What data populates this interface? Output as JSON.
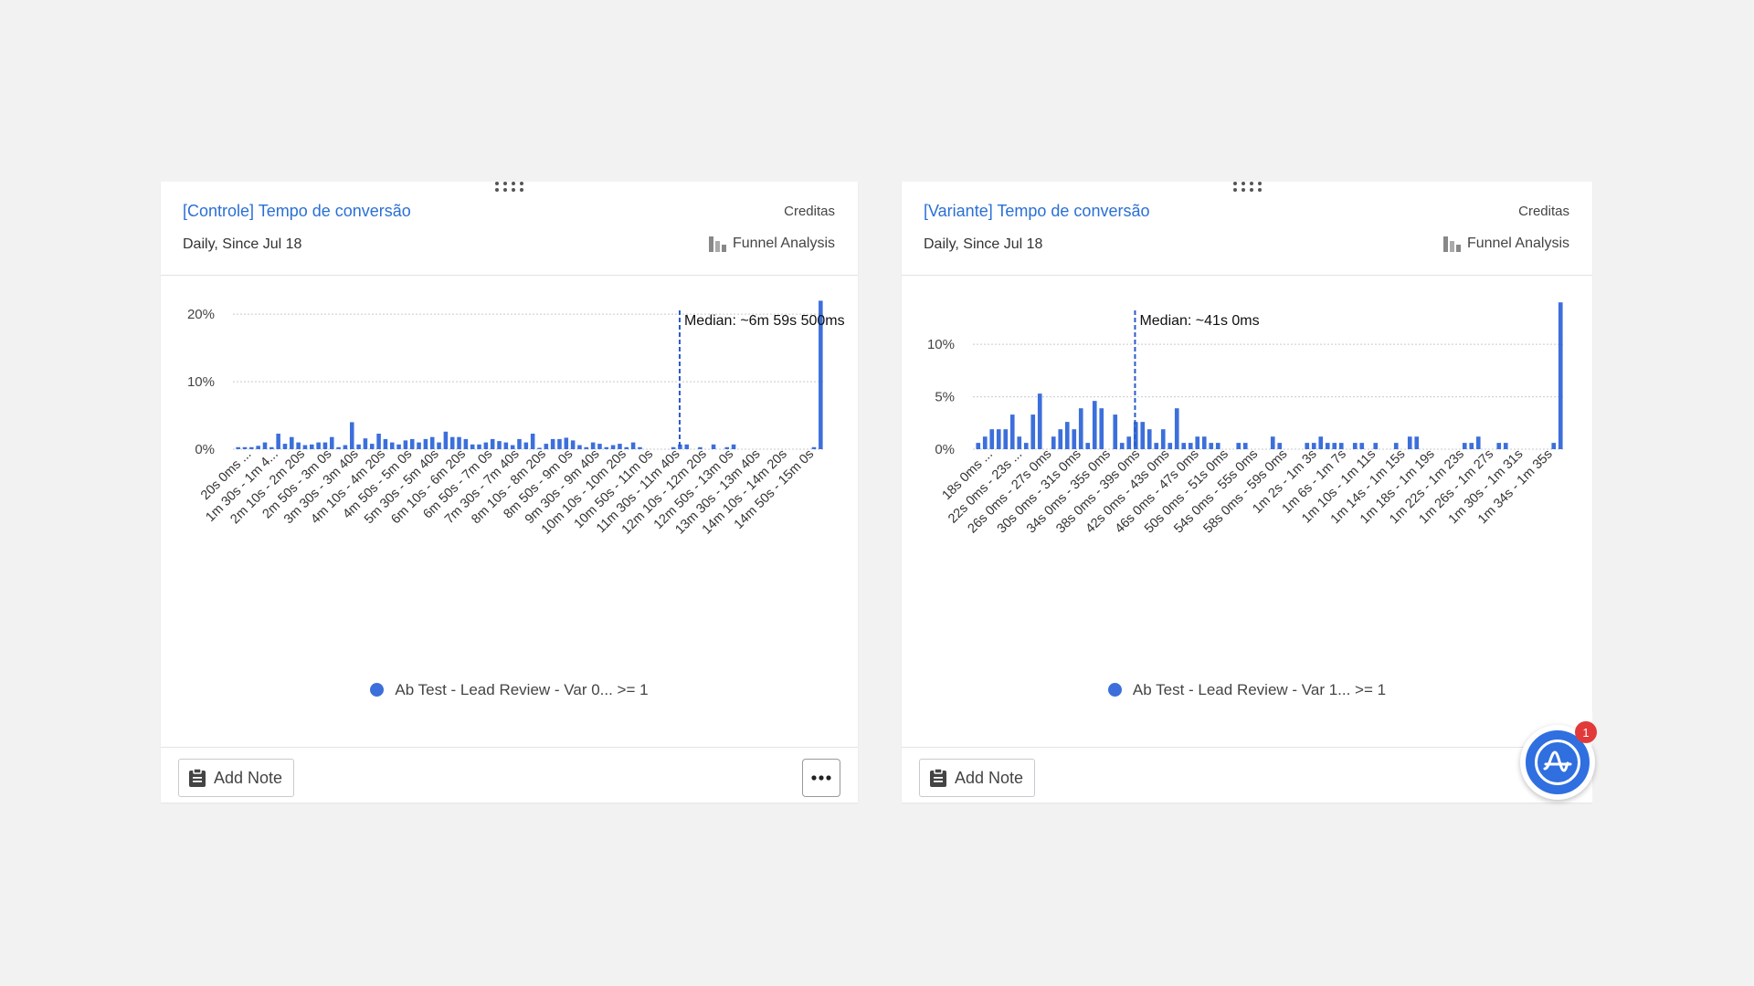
{
  "cards": [
    {
      "id": "left",
      "title": "[Controle] Tempo de conversão",
      "project": "Creditas",
      "subtitle": "Daily, Since Jul 18",
      "chart_type_label": "Funnel Analysis",
      "legend_label": "Ab Test - Lead Review - Var 0... >= 1",
      "add_note_label": "Add Note",
      "more_icon": "ellipsis-icon"
    },
    {
      "id": "right",
      "title": "[Variante] Tempo de conversão",
      "project": "Creditas",
      "subtitle": "Daily, Since Jul 18",
      "chart_type_label": "Funnel Analysis",
      "legend_label": "Ab Test - Lead Review - Var 1... >= 1",
      "add_note_label": "Add Note"
    }
  ],
  "fab": {
    "badge": "1",
    "icon": "amplitude-logo-icon"
  },
  "colors": {
    "bar": "#3c6fdb",
    "title": "#2a6fd6",
    "median_line": "#2a5bc8"
  },
  "chart_data": [
    {
      "type": "bar",
      "series": [
        {
          "name": "Ab Test - Lead Review - Var 0... >= 1"
        }
      ],
      "y_ticks": [
        {
          "value": 0,
          "label": "0%"
        },
        {
          "value": 10,
          "label": "10%"
        },
        {
          "value": 20,
          "label": "20%"
        }
      ],
      "ylim": [
        0,
        23
      ],
      "x_tick_labels": [
        "20s 0ms ...",
        "1m 30s - 1m 4...",
        "2m 10s - 2m 20s",
        "2m 50s - 3m 0s",
        "3m 30s - 3m 40s",
        "4m 10s - 4m 20s",
        "4m 50s - 5m 0s",
        "5m 30s - 5m 40s",
        "6m 10s - 6m 20s",
        "6m 50s - 7m 0s",
        "7m 30s - 7m 40s",
        "8m 10s - 8m 20s",
        "8m 50s - 9m 0s",
        "9m 30s - 9m 40s",
        "10m 10s - 10m 20s",
        "10m 50s - 11m 0s",
        "11m 30s - 11m 40s",
        "12m 10s - 12m 20s",
        "12m 50s - 13m 0s",
        "13m 30s - 13m 40s",
        "14m 10s - 14m 20s",
        "14m 50s - 15m 0s"
      ],
      "values": [
        0.3,
        0.3,
        0.3,
        0.5,
        1.0,
        0.3,
        2.3,
        0.8,
        1.8,
        1.0,
        0.6,
        0.7,
        1.0,
        1.0,
        1.8,
        0.3,
        0.6,
        4.0,
        0.7,
        1.6,
        0.8,
        2.3,
        1.5,
        1.0,
        0.7,
        1.3,
        1.5,
        1.0,
        1.5,
        1.8,
        1.0,
        2.6,
        1.8,
        1.8,
        1.5,
        0.7,
        0.7,
        1.0,
        1.5,
        1.2,
        1.0,
        0.6,
        1.5,
        1.0,
        2.3,
        0.2,
        0.8,
        1.5,
        1.5,
        1.7,
        1.3,
        0.6,
        0.3,
        1.0,
        0.8,
        0.3,
        0.6,
        0.8,
        0.3,
        1.0,
        0.3,
        0,
        0,
        0,
        0,
        0.3,
        0.7,
        0.7,
        0,
        0.3,
        0,
        0.7,
        0,
        0.3,
        0.7,
        0,
        0,
        0,
        0,
        0,
        0,
        0,
        0,
        0,
        0,
        0,
        0.3,
        22.0
      ],
      "median": {
        "position": 0.755,
        "label": "Median: ~6m 59s 500ms"
      },
      "xlabel": "",
      "ylabel": "",
      "grid": true
    },
    {
      "type": "bar",
      "series": [
        {
          "name": "Ab Test - Lead Review - Var 1... >= 1"
        }
      ],
      "y_ticks": [
        {
          "value": 0,
          "label": "0%"
        },
        {
          "value": 5,
          "label": "5%"
        },
        {
          "value": 10,
          "label": "10%"
        }
      ],
      "ylim": [
        0,
        14.8
      ],
      "x_tick_labels": [
        "18s 0ms ...",
        "22s 0ms - 23s ...",
        "26s 0ms - 27s 0ms",
        "30s 0ms - 31s 0ms",
        "34s 0ms - 35s 0ms",
        "38s 0ms - 39s 0ms",
        "42s 0ms - 43s 0ms",
        "46s 0ms - 47s 0ms",
        "50s 0ms - 51s 0ms",
        "54s 0ms - 55s 0ms",
        "58s 0ms - 59s 0ms",
        "1m 2s - 1m 3s",
        "1m 6s - 1m 7s",
        "1m 10s - 1m 11s",
        "1m 14s - 1m 15s",
        "1m 18s - 1m 19s",
        "1m 22s - 1m 23s",
        "1m 26s - 1m 27s",
        "1m 30s - 1m 31s",
        "1m 34s - 1m 35s"
      ],
      "values": [
        0.6,
        1.2,
        1.9,
        1.9,
        1.9,
        3.3,
        1.2,
        0.6,
        3.3,
        5.3,
        0,
        1.2,
        1.9,
        2.6,
        1.9,
        3.9,
        0.6,
        4.6,
        3.9,
        0,
        3.3,
        0.6,
        1.2,
        2.6,
        2.6,
        1.9,
        0.6,
        1.9,
        0.6,
        3.9,
        0.6,
        0.6,
        1.2,
        1.2,
        0.6,
        0.6,
        0,
        0,
        0.6,
        0.6,
        0,
        0,
        0,
        1.2,
        0.6,
        0,
        0,
        0,
        0.6,
        0.6,
        1.2,
        0.6,
        0.6,
        0.6,
        0,
        0.6,
        0.6,
        0,
        0.6,
        0,
        0,
        0.6,
        0,
        1.2,
        1.2,
        0,
        0,
        0,
        0,
        0,
        0,
        0.6,
        0.6,
        1.2,
        0,
        0,
        0.6,
        0.6,
        0,
        0,
        0,
        0,
        0,
        0,
        0.6,
        14.0
      ],
      "median": {
        "position": 0.272,
        "label": "Median: ~41s 0ms"
      },
      "xlabel": "",
      "ylabel": "",
      "grid": true
    }
  ]
}
